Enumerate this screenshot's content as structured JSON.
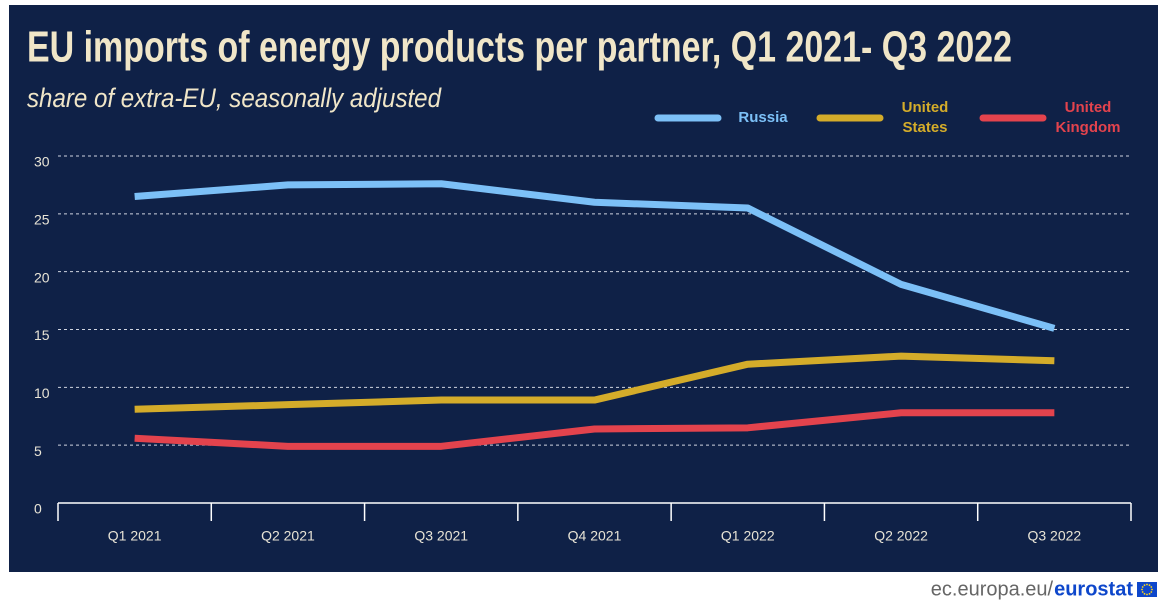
{
  "chart_data": {
    "type": "line",
    "title": "EU imports of energy products per partner, Q1 2021- Q3 2022",
    "subtitle": "share of extra-EU, seasonally adjusted",
    "categories": [
      "Q1 2021",
      "Q2 2021",
      "Q3 2021",
      "Q4 2021",
      "Q1 2022",
      "Q2 2022",
      "Q3 2022"
    ],
    "series": [
      {
        "name": "Russia",
        "color": "#7cc0f7",
        "values": [
          26.5,
          27.5,
          27.6,
          26.0,
          25.5,
          18.9,
          15.1
        ]
      },
      {
        "name": "United States",
        "color": "#d4ac2a",
        "values": [
          8.1,
          8.5,
          8.9,
          8.9,
          12.0,
          12.7,
          12.3
        ]
      },
      {
        "name": "United Kingdom",
        "color": "#e3434d",
        "values": [
          5.6,
          4.9,
          4.9,
          6.4,
          6.5,
          7.8,
          7.8
        ]
      }
    ],
    "ylim": [
      0,
      30
    ],
    "yticks": [
      0,
      5,
      10,
      15,
      20,
      25,
      30
    ],
    "grid": true,
    "legend": "top-right",
    "footer": {
      "domain": "ec.europa.eu/",
      "brand": "eurostat"
    }
  }
}
